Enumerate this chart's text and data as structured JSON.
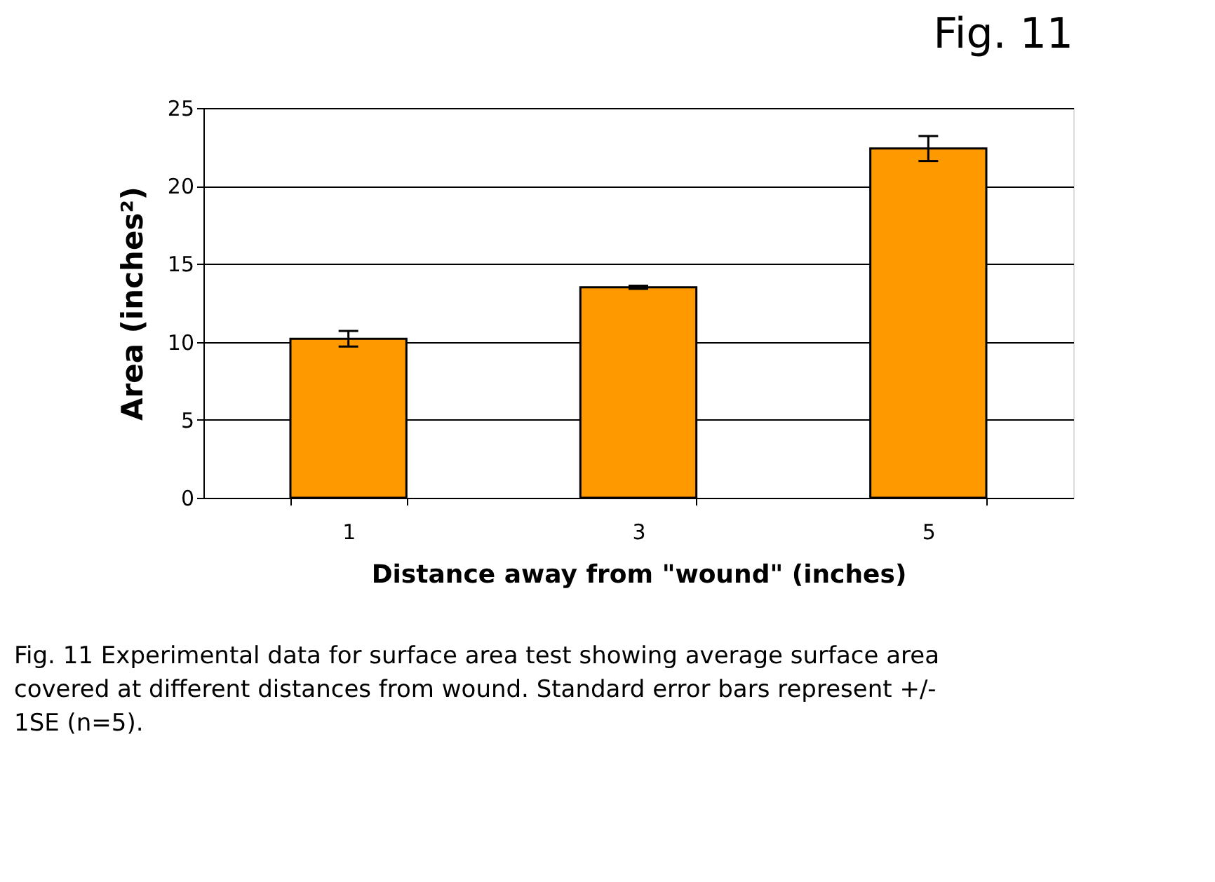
{
  "chart_data": {
    "type": "bar",
    "title": "Fig. 11",
    "xlabel": "Distance away from \"wound\" (inches)",
    "ylabel": "Area (inches²)",
    "categories": [
      "1",
      "3",
      "5"
    ],
    "values": [
      10.2,
      13.5,
      22.4
    ],
    "errors": [
      0.5,
      0.1,
      0.8
    ],
    "color": "#ff9900",
    "ylim": [
      0,
      25
    ],
    "yticks": [
      0,
      5,
      10,
      15,
      20,
      25
    ],
    "grid": "y",
    "annotations": [
      "Fig. 11 Experimental data for surface area test showing average surface area covered at different distances from wound. Standard error bars represent +/- 1SE (n=5)."
    ]
  }
}
